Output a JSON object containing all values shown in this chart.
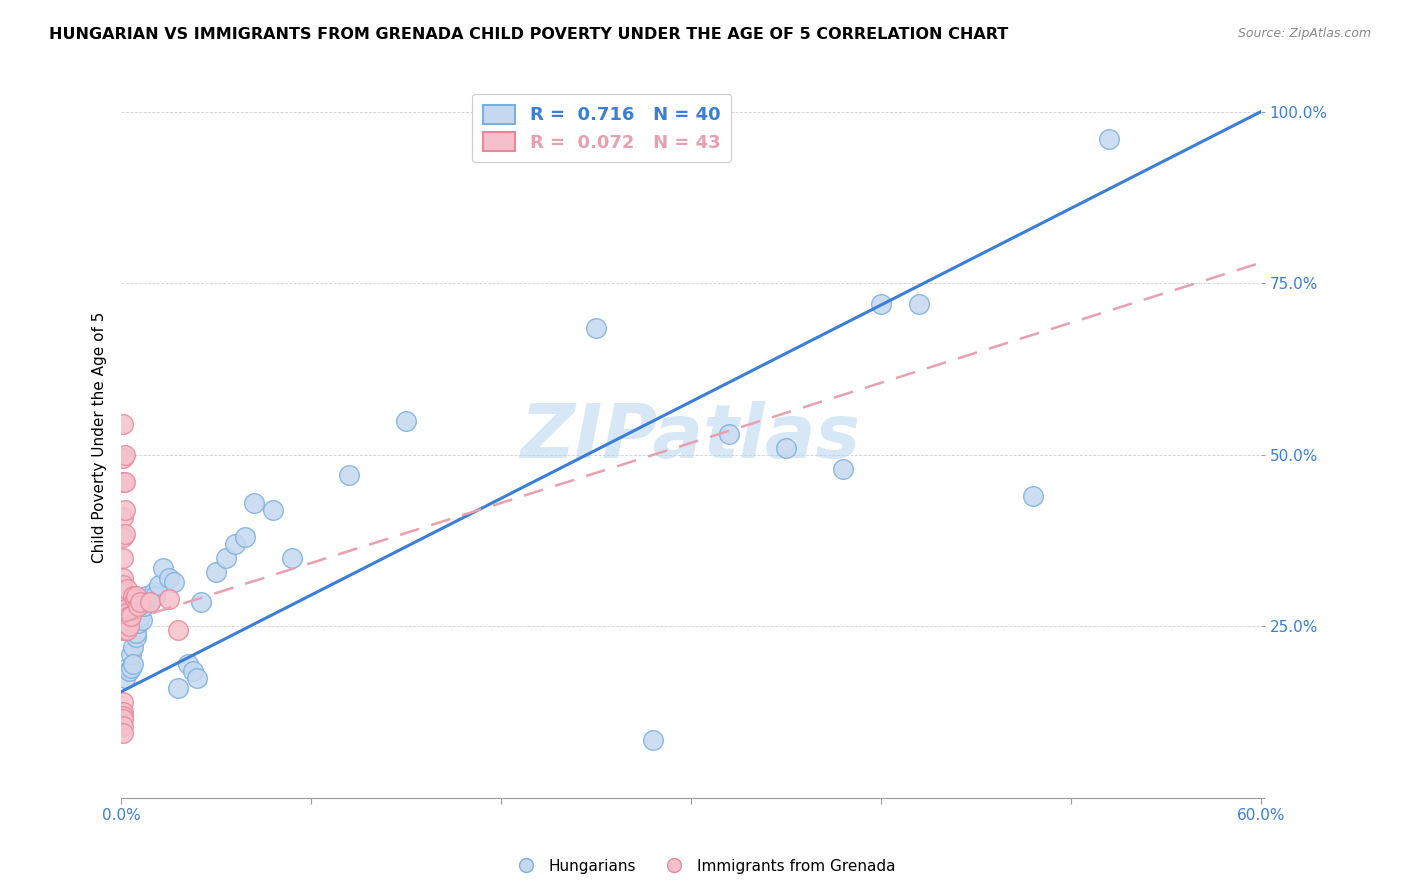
{
  "title": "HUNGARIAN VS IMMIGRANTS FROM GRENADA CHILD POVERTY UNDER THE AGE OF 5 CORRELATION CHART",
  "source": "Source: ZipAtlas.com",
  "ylabel": "Child Poverty Under the Age of 5",
  "ytick_labels": [
    "",
    "25.0%",
    "50.0%",
    "75.0%",
    "100.0%"
  ],
  "ytick_values": [
    0,
    0.25,
    0.5,
    0.75,
    1.0
  ],
  "xlim": [
    0.0,
    0.6
  ],
  "ylim": [
    0.0,
    1.05
  ],
  "watermark": "ZIPatlas",
  "hungarian_fill": "#c5d8f0",
  "hungarian_edge": "#7ab0e0",
  "grenada_fill": "#f5c0cc",
  "grenada_edge": "#e88898",
  "trendline_hungarian_color": "#3a7fd5",
  "trendline_grenada_color": "#e8a0b0",
  "hungarian_points": [
    [
      0.002,
      0.175
    ],
    [
      0.003,
      0.19
    ],
    [
      0.004,
      0.185
    ],
    [
      0.005,
      0.19
    ],
    [
      0.005,
      0.21
    ],
    [
      0.006,
      0.22
    ],
    [
      0.006,
      0.195
    ],
    [
      0.007,
      0.24
    ],
    [
      0.008,
      0.235
    ],
    [
      0.008,
      0.24
    ],
    [
      0.009,
      0.255
    ],
    [
      0.009,
      0.27
    ],
    [
      0.01,
      0.265
    ],
    [
      0.011,
      0.26
    ],
    [
      0.012,
      0.28
    ],
    [
      0.013,
      0.29
    ],
    [
      0.013,
      0.295
    ],
    [
      0.015,
      0.285
    ],
    [
      0.017,
      0.3
    ],
    [
      0.018,
      0.295
    ],
    [
      0.02,
      0.31
    ],
    [
      0.022,
      0.335
    ],
    [
      0.025,
      0.32
    ],
    [
      0.028,
      0.315
    ],
    [
      0.03,
      0.16
    ],
    [
      0.035,
      0.195
    ],
    [
      0.038,
      0.185
    ],
    [
      0.04,
      0.175
    ],
    [
      0.042,
      0.285
    ],
    [
      0.05,
      0.33
    ],
    [
      0.055,
      0.35
    ],
    [
      0.06,
      0.37
    ],
    [
      0.065,
      0.38
    ],
    [
      0.07,
      0.43
    ],
    [
      0.08,
      0.42
    ],
    [
      0.09,
      0.35
    ],
    [
      0.12,
      0.47
    ],
    [
      0.15,
      0.55
    ],
    [
      0.25,
      0.685
    ],
    [
      0.28,
      0.085
    ],
    [
      0.32,
      0.53
    ],
    [
      0.35,
      0.51
    ],
    [
      0.38,
      0.48
    ],
    [
      0.4,
      0.72
    ],
    [
      0.42,
      0.72
    ],
    [
      0.48,
      0.44
    ],
    [
      0.52,
      0.96
    ]
  ],
  "grenada_points": [
    [
      0.001,
      0.545
    ],
    [
      0.001,
      0.495
    ],
    [
      0.001,
      0.46
    ],
    [
      0.001,
      0.41
    ],
    [
      0.001,
      0.38
    ],
    [
      0.001,
      0.35
    ],
    [
      0.001,
      0.32
    ],
    [
      0.001,
      0.31
    ],
    [
      0.001,
      0.3
    ],
    [
      0.001,
      0.285
    ],
    [
      0.001,
      0.275
    ],
    [
      0.001,
      0.27
    ],
    [
      0.001,
      0.26
    ],
    [
      0.001,
      0.255
    ],
    [
      0.001,
      0.245
    ],
    [
      0.001,
      0.14
    ],
    [
      0.001,
      0.125
    ],
    [
      0.001,
      0.12
    ],
    [
      0.001,
      0.115
    ],
    [
      0.001,
      0.105
    ],
    [
      0.001,
      0.095
    ],
    [
      0.002,
      0.5
    ],
    [
      0.002,
      0.46
    ],
    [
      0.002,
      0.42
    ],
    [
      0.002,
      0.385
    ],
    [
      0.002,
      0.3
    ],
    [
      0.002,
      0.275
    ],
    [
      0.002,
      0.26
    ],
    [
      0.002,
      0.245
    ],
    [
      0.003,
      0.305
    ],
    [
      0.003,
      0.27
    ],
    [
      0.003,
      0.245
    ],
    [
      0.004,
      0.265
    ],
    [
      0.004,
      0.25
    ],
    [
      0.005,
      0.265
    ],
    [
      0.006,
      0.295
    ],
    [
      0.007,
      0.29
    ],
    [
      0.008,
      0.295
    ],
    [
      0.009,
      0.28
    ],
    [
      0.01,
      0.285
    ],
    [
      0.015,
      0.285
    ],
    [
      0.025,
      0.29
    ],
    [
      0.03,
      0.245
    ]
  ],
  "hungarian_trendline": [
    [
      0.0,
      0.155
    ],
    [
      0.6,
      1.0
    ]
  ],
  "grenada_trendline": [
    [
      0.0,
      0.255
    ],
    [
      0.6,
      0.78
    ]
  ]
}
